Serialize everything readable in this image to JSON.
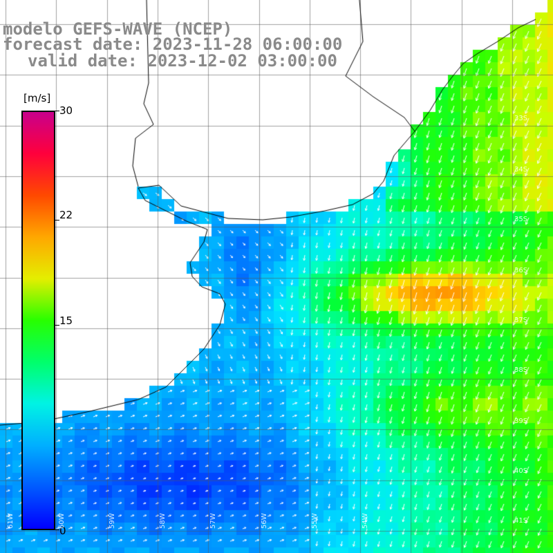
{
  "titles": {
    "line1": "modelo GEFS-WAVE (NCEP)",
    "line2": "forecast date: 2023-11-28 06:00:00",
    "line3": "valid date: 2023-12-02 03:00:00"
  },
  "colorbar": {
    "unit_label": "[m/s]",
    "ticks": [
      "30",
      "22",
      "15",
      "0"
    ],
    "tick_values": [
      30,
      22,
      15,
      0
    ]
  },
  "lat_labels": [
    "33S",
    "34S",
    "35S",
    "36S",
    "37S",
    "38S",
    "39S",
    "40S",
    "41S"
  ],
  "lon_labels": [
    "61W",
    "60W",
    "59W",
    "58W",
    "57W",
    "56W",
    "55W",
    "54W"
  ],
  "colors": {
    "land": "#ffffff",
    "grid": "#555555",
    "coast": "#000000",
    "arrows": "#ffffff",
    "title": "#8a8a8a"
  }
}
